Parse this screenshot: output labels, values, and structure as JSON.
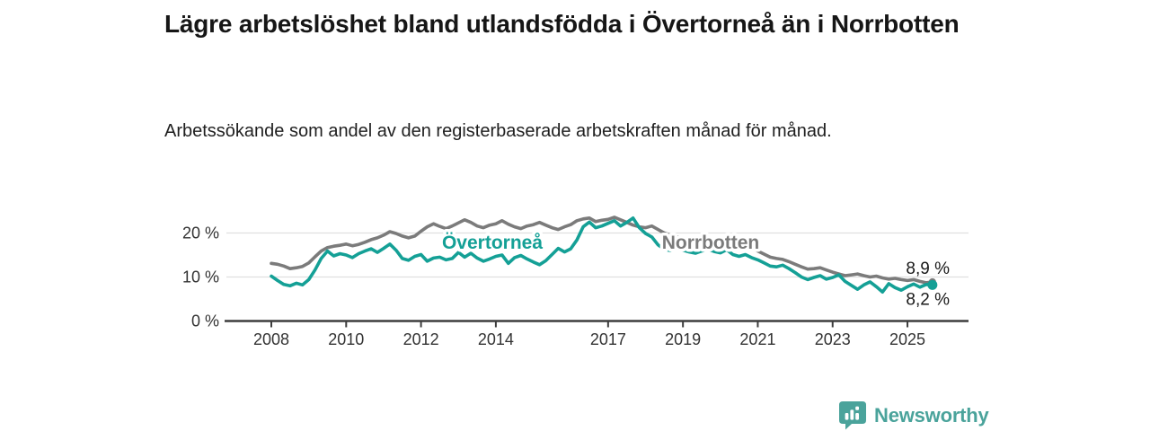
{
  "header": {
    "title": "Lägre arbetslöshet bland utlandsfödda i Övertorneå än i Norrbotten",
    "subtitle": "Arbetssökande som andel av den registerbaserade arbetskraften månad för månad."
  },
  "chart_data": {
    "type": "line",
    "title": "Lägre arbetslöshet bland utlandsfödda i Övertorneå än i Norrbotten",
    "subtitle": "Arbetssökande som andel av den registerbaserade arbetskraften månad för månad.",
    "x_start": 2008.0,
    "x_step": 0.16667,
    "x_unit": "year",
    "ylim": [
      0,
      25
    ],
    "grid": "horizontal",
    "legend_position": "inline-labels",
    "yticks": [
      {
        "value": 0,
        "label": "0 %"
      },
      {
        "value": 10,
        "label": "10 %"
      },
      {
        "value": 20,
        "label": "20 %"
      }
    ],
    "xticks": [
      {
        "value": 2008,
        "label": "2008"
      },
      {
        "value": 2010,
        "label": "2010"
      },
      {
        "value": 2012,
        "label": "2012"
      },
      {
        "value": 2014,
        "label": "2014"
      },
      {
        "value": 2017,
        "label": "2017"
      },
      {
        "value": 2019,
        "label": "2019"
      },
      {
        "value": 2021,
        "label": "2021"
      },
      {
        "value": 2023,
        "label": "2023"
      },
      {
        "value": 2025,
        "label": "2025"
      }
    ],
    "series": [
      {
        "name": "Norrbotten",
        "color": "#7b7b7b",
        "end_label": "8,9 %",
        "end_label_side": "above",
        "end_dot_radius": 4,
        "values": [
          13.1,
          12.9,
          12.5,
          11.9,
          12.1,
          12.4,
          13.2,
          14.6,
          15.9,
          16.7,
          17.0,
          17.2,
          17.5,
          17.1,
          17.4,
          17.9,
          18.5,
          18.9,
          19.5,
          20.3,
          19.9,
          19.3,
          18.9,
          19.3,
          20.4,
          21.4,
          22.1,
          21.5,
          21.0,
          21.6,
          22.3,
          23.0,
          22.4,
          21.6,
          21.2,
          21.8,
          22.1,
          22.8,
          22.0,
          21.4,
          21.0,
          21.6,
          21.9,
          22.4,
          21.8,
          21.2,
          20.8,
          21.4,
          21.9,
          22.8,
          23.2,
          23.4,
          22.6,
          22.9,
          23.1,
          23.6,
          23.0,
          22.4,
          21.8,
          21.4,
          21.2,
          21.6,
          20.8,
          20.0,
          19.5,
          19.1,
          18.9,
          18.5,
          18.1,
          17.9,
          17.7,
          17.8,
          17.6,
          18.0,
          17.9,
          17.6,
          17.2,
          16.6,
          15.9,
          15.2,
          14.5,
          14.2,
          14.0,
          13.5,
          12.9,
          12.3,
          11.8,
          11.9,
          12.1,
          11.6,
          11.1,
          10.7,
          10.3,
          10.5,
          10.7,
          10.3,
          10.0,
          10.2,
          9.8,
          9.5,
          9.7,
          9.4,
          9.2,
          9.4,
          9.0,
          8.7,
          8.9
        ]
      },
      {
        "name": "Övertorneå",
        "color": "#14a096",
        "end_label": "8,2 %",
        "end_label_side": "below",
        "end_dot_radius": 5.5,
        "values": [
          10.2,
          9.2,
          8.3,
          8.0,
          8.6,
          8.2,
          9.4,
          11.6,
          14.2,
          15.9,
          14.8,
          15.3,
          15.0,
          14.4,
          15.3,
          15.9,
          16.4,
          15.6,
          16.5,
          17.5,
          16.1,
          14.2,
          13.8,
          14.7,
          15.1,
          13.6,
          14.3,
          14.5,
          13.9,
          14.2,
          15.6,
          14.5,
          15.4,
          14.3,
          13.6,
          14.1,
          14.7,
          15.0,
          13.1,
          14.4,
          14.9,
          14.1,
          13.4,
          12.8,
          13.7,
          15.1,
          16.5,
          15.7,
          16.4,
          18.4,
          21.4,
          22.5,
          21.2,
          21.6,
          22.2,
          22.8,
          21.6,
          22.4,
          23.4,
          21.2,
          19.9,
          19.1,
          17.3,
          16.3,
          16.0,
          16.5,
          16.1,
          15.7,
          15.4,
          15.9,
          16.3,
          15.8,
          15.5,
          16.2,
          15.1,
          14.7,
          15.1,
          14.4,
          13.9,
          13.2,
          12.5,
          12.3,
          12.7,
          11.9,
          11.0,
          10.0,
          9.4,
          9.9,
          10.3,
          9.5,
          9.9,
          10.5,
          9.0,
          8.1,
          7.2,
          8.2,
          8.9,
          7.8,
          6.6,
          8.5,
          7.6,
          7.0,
          7.8,
          8.4,
          7.7,
          8.3,
          8.2
        ]
      }
    ]
  },
  "footer": {
    "brand": "Newsworthy",
    "brand_color": "#4aa39b",
    "logo_icon": "bar-chart-bubble-icon"
  },
  "colors": {
    "background": "#ffffff",
    "title_text": "#161616",
    "axis_text": "#333333",
    "axis_line": "#3d3d3d",
    "gridline": "#e0e0e0",
    "value_label_text": "#1a1a1a"
  }
}
